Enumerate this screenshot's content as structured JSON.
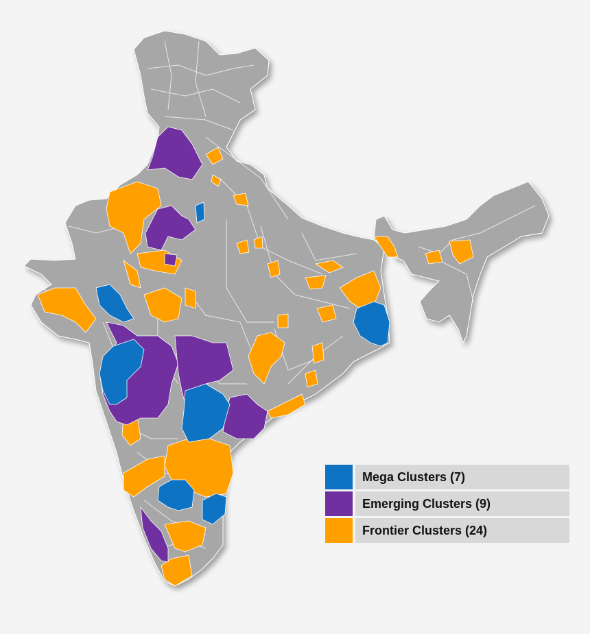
{
  "colors": {
    "background": "#f4f4f4",
    "base": "#a7a7a7",
    "border": "#ffffff",
    "mega": "#0f73c4",
    "emerging": "#7030a0",
    "frontier": "#ffa000"
  },
  "legend": {
    "items": [
      {
        "key": "mega",
        "label": "Mega Clusters (7)",
        "color": "#0f73c4"
      },
      {
        "key": "emerging",
        "label": "Emerging Clusters (9)",
        "color": "#7030a0"
      },
      {
        "key": "frontier",
        "label": "Frontier Clusters (24)",
        "color": "#ffa000"
      }
    ]
  }
}
